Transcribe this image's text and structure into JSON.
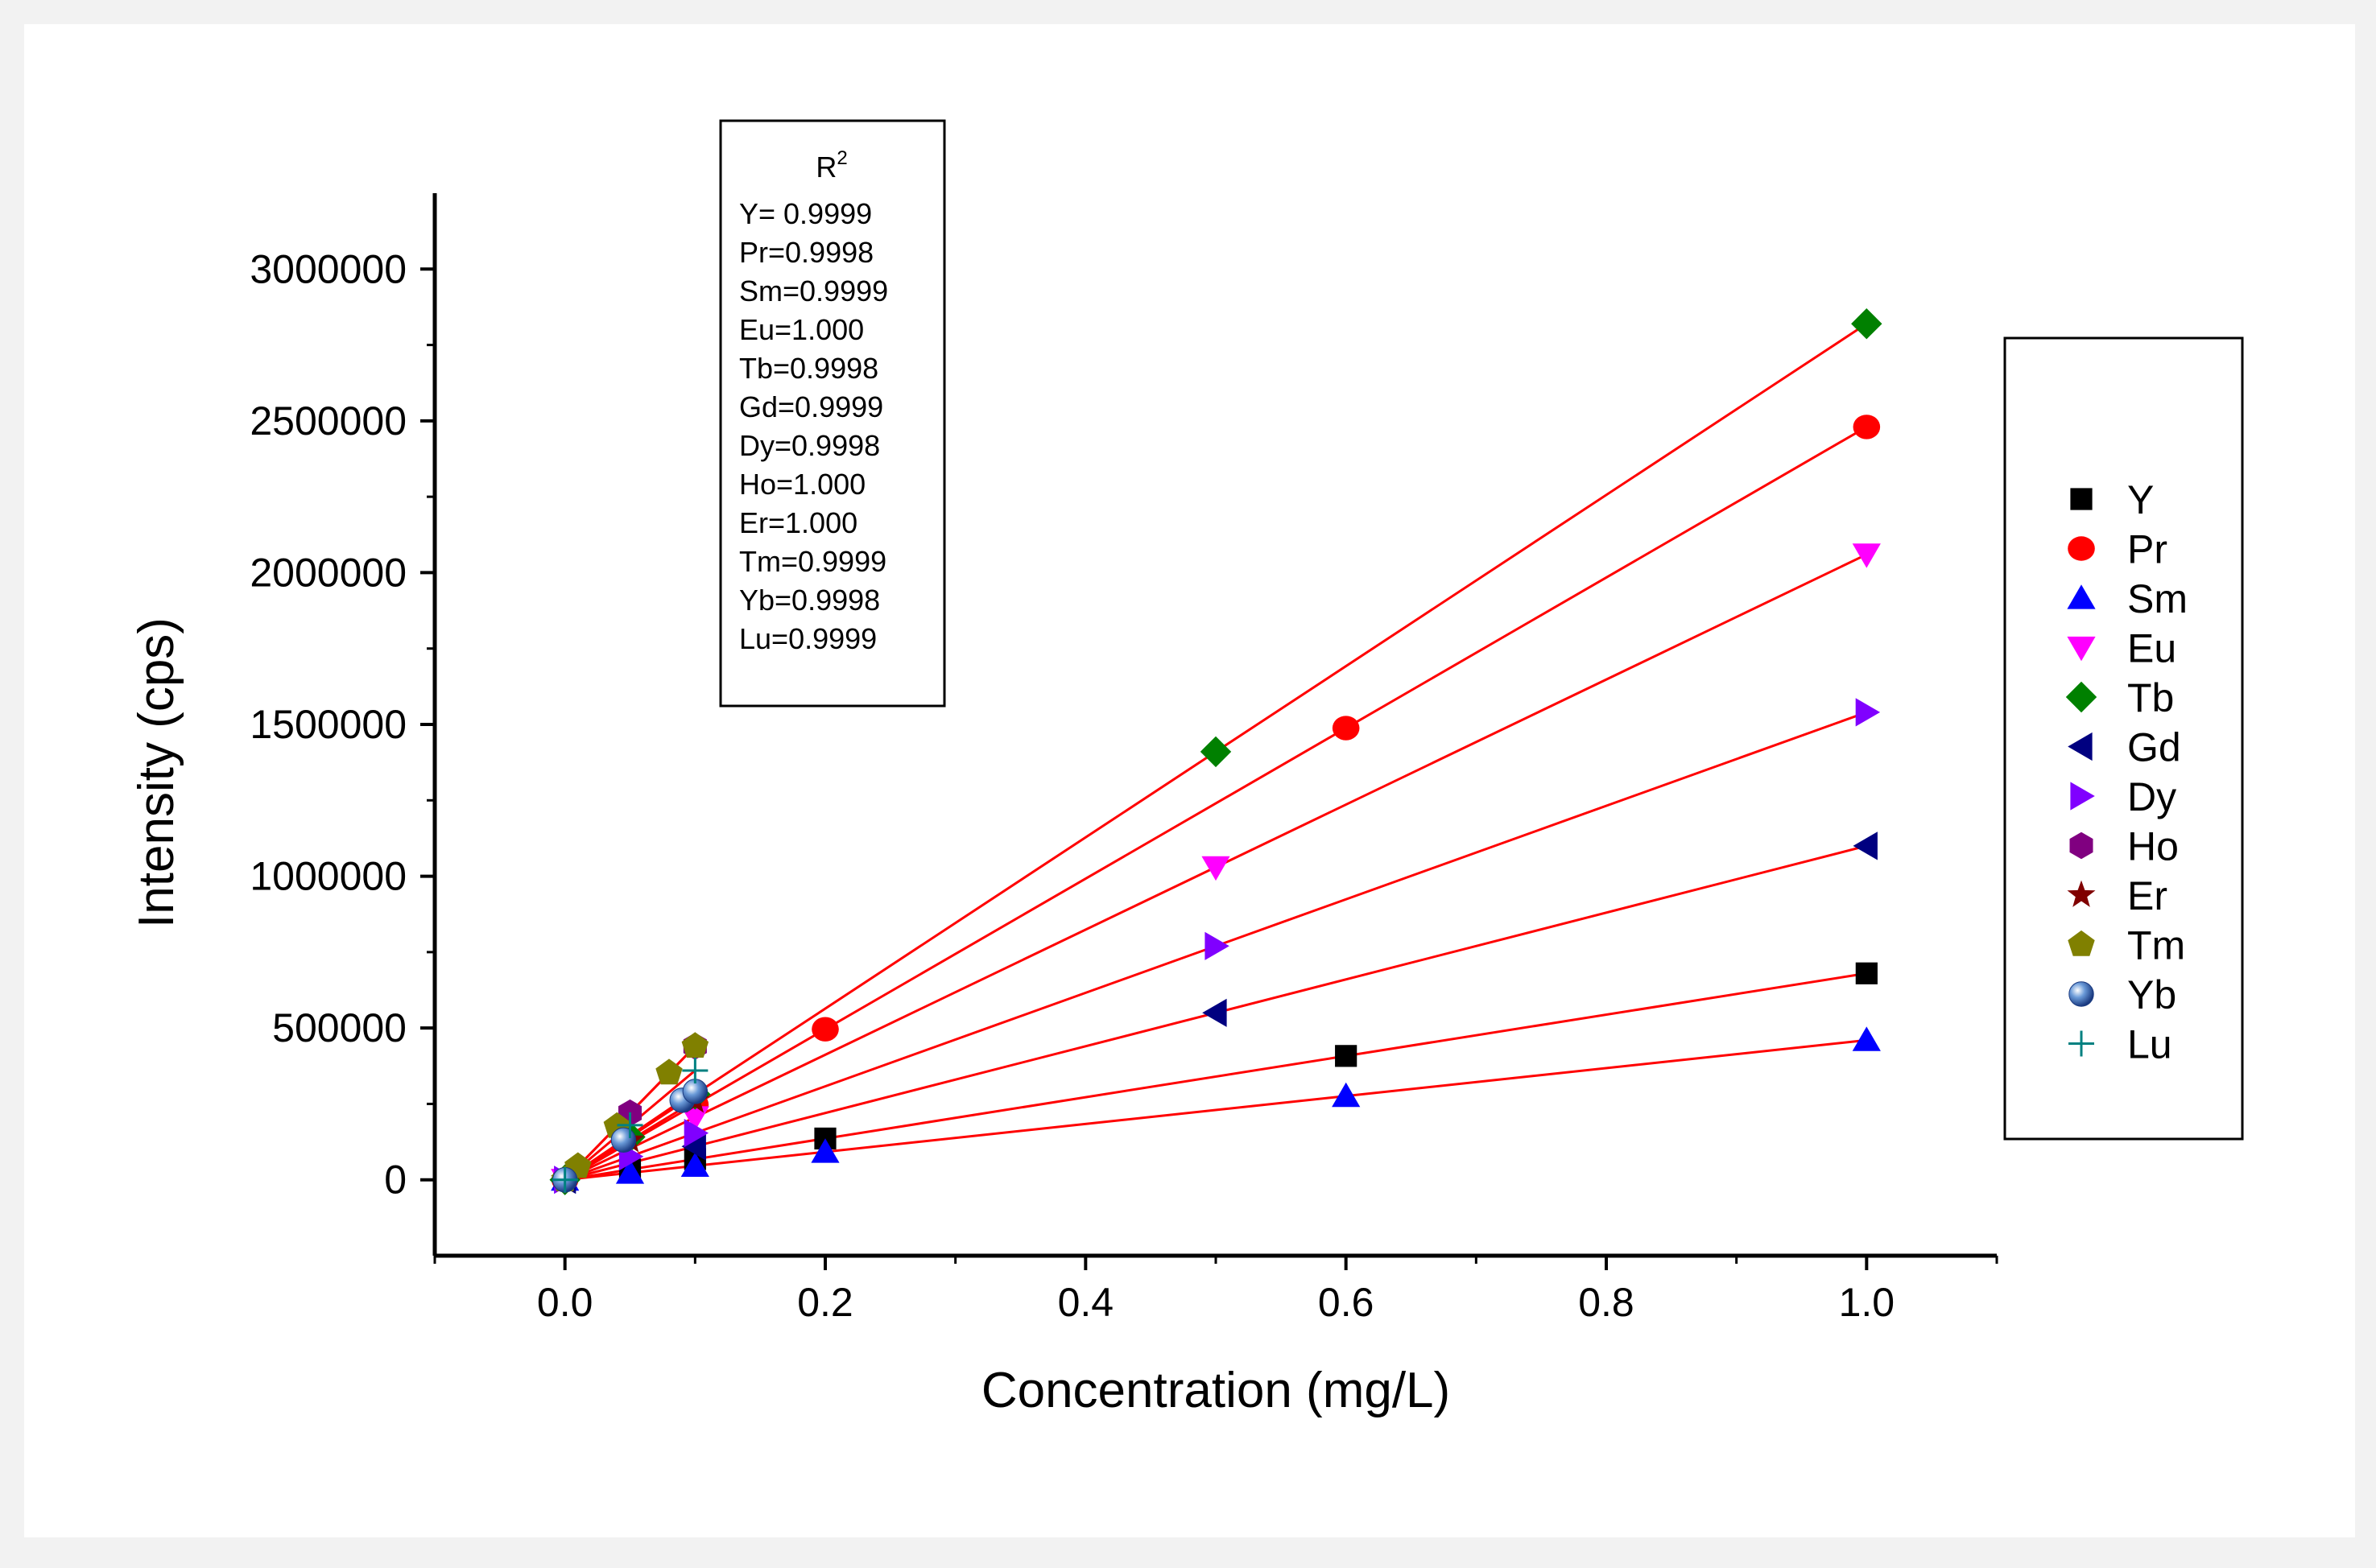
{
  "chart_data": {
    "type": "scatter",
    "title": "",
    "xlabel": "Concentration (mg/L)",
    "ylabel": "Intensity (cps)",
    "xlim": [
      -0.1,
      1.1
    ],
    "ylim": [
      -250000,
      3250000
    ],
    "xticks": [
      0.0,
      0.2,
      0.4,
      0.6,
      0.8,
      1.0
    ],
    "xtick_labels": [
      "0.0",
      "0.2",
      "0.4",
      "0.6",
      "0.8",
      "1.0"
    ],
    "yticks": [
      0,
      500000,
      1000000,
      1500000,
      2000000,
      2500000,
      3000000
    ],
    "ytick_labels": [
      "0",
      "500000",
      "1000000",
      "1500000",
      "2000000",
      "2500000",
      "3000000"
    ],
    "grid": false,
    "legend_position": "right",
    "fit_line_color": "#ff0000",
    "r2_box": {
      "title": "R",
      "title_sup": "2",
      "lines": [
        "Y= 0.9999",
        "Pr=0.9998",
        "Sm=0.9999",
        "Eu=1.000",
        "Tb=0.9998",
        "Gd=0.9999",
        "Dy=0.9998",
        "Ho=1.000",
        "Er=1.000",
        "Tm=0.9999",
        "Yb=0.9998",
        "Lu=0.9999"
      ]
    },
    "series": [
      {
        "name": "Y",
        "marker": "square",
        "color": "#000000",
        "x": [
          0,
          0.05,
          0.1,
          0.2,
          0.6,
          1.0
        ],
        "y": [
          0,
          34000,
          68000,
          136000,
          408000,
          680000
        ]
      },
      {
        "name": "Pr",
        "marker": "circle",
        "color": "#ff0000",
        "x": [
          0,
          0.1,
          0.2,
          0.6,
          1.0
        ],
        "y": [
          0,
          248000,
          496000,
          1488000,
          2480000
        ]
      },
      {
        "name": "Sm",
        "marker": "triangle-up",
        "color": "#0000ff",
        "x": [
          0,
          0.05,
          0.1,
          0.2,
          0.6,
          1.0
        ],
        "y": [
          0,
          23000,
          46000,
          92000,
          276000,
          460000
        ]
      },
      {
        "name": "Eu",
        "marker": "triangle-down",
        "color": "#ff00ff",
        "x": [
          0,
          0.1,
          0.5,
          1.0
        ],
        "y": [
          0,
          206000,
          1030000,
          2060000
        ]
      },
      {
        "name": "Tb",
        "marker": "diamond",
        "color": "#008000",
        "x": [
          0,
          0.05,
          0.1,
          0.5,
          1.0
        ],
        "y": [
          0,
          141000,
          282000,
          1410000,
          2820000
        ]
      },
      {
        "name": "Gd",
        "marker": "triangle-left",
        "color": "#000080",
        "x": [
          0,
          0.1,
          0.5,
          1.0
        ],
        "y": [
          0,
          110000,
          550000,
          1100000
        ]
      },
      {
        "name": "Dy",
        "marker": "triangle-right",
        "color": "#8000ff",
        "x": [
          0,
          0.05,
          0.1,
          0.5,
          1.0
        ],
        "y": [
          0,
          77000,
          154000,
          770000,
          1540000
        ]
      },
      {
        "name": "Ho",
        "marker": "hexagon",
        "color": "#800080",
        "x": [
          0,
          0.05,
          0.1
        ],
        "y": [
          0,
          220000,
          440000
        ]
      },
      {
        "name": "Er",
        "marker": "star",
        "color": "#800000",
        "x": [
          0,
          0.05,
          0.1
        ],
        "y": [
          0,
          130000,
          260000
        ]
      },
      {
        "name": "Tm",
        "marker": "pentagon",
        "color": "#808000",
        "x": [
          0,
          0.01,
          0.04,
          0.08,
          0.1
        ],
        "y": [
          0,
          44000,
          176000,
          352000,
          440000
        ]
      },
      {
        "name": "Yb",
        "marker": "sphere",
        "color": "#3060b0",
        "x": [
          0,
          0.045,
          0.09,
          0.1
        ],
        "y": [
          0,
          131000,
          262000,
          291000
        ]
      },
      {
        "name": "Lu",
        "marker": "plus",
        "color": "#008080",
        "x": [
          0,
          0.05,
          0.1
        ],
        "y": [
          0,
          180000,
          360000
        ]
      }
    ]
  }
}
